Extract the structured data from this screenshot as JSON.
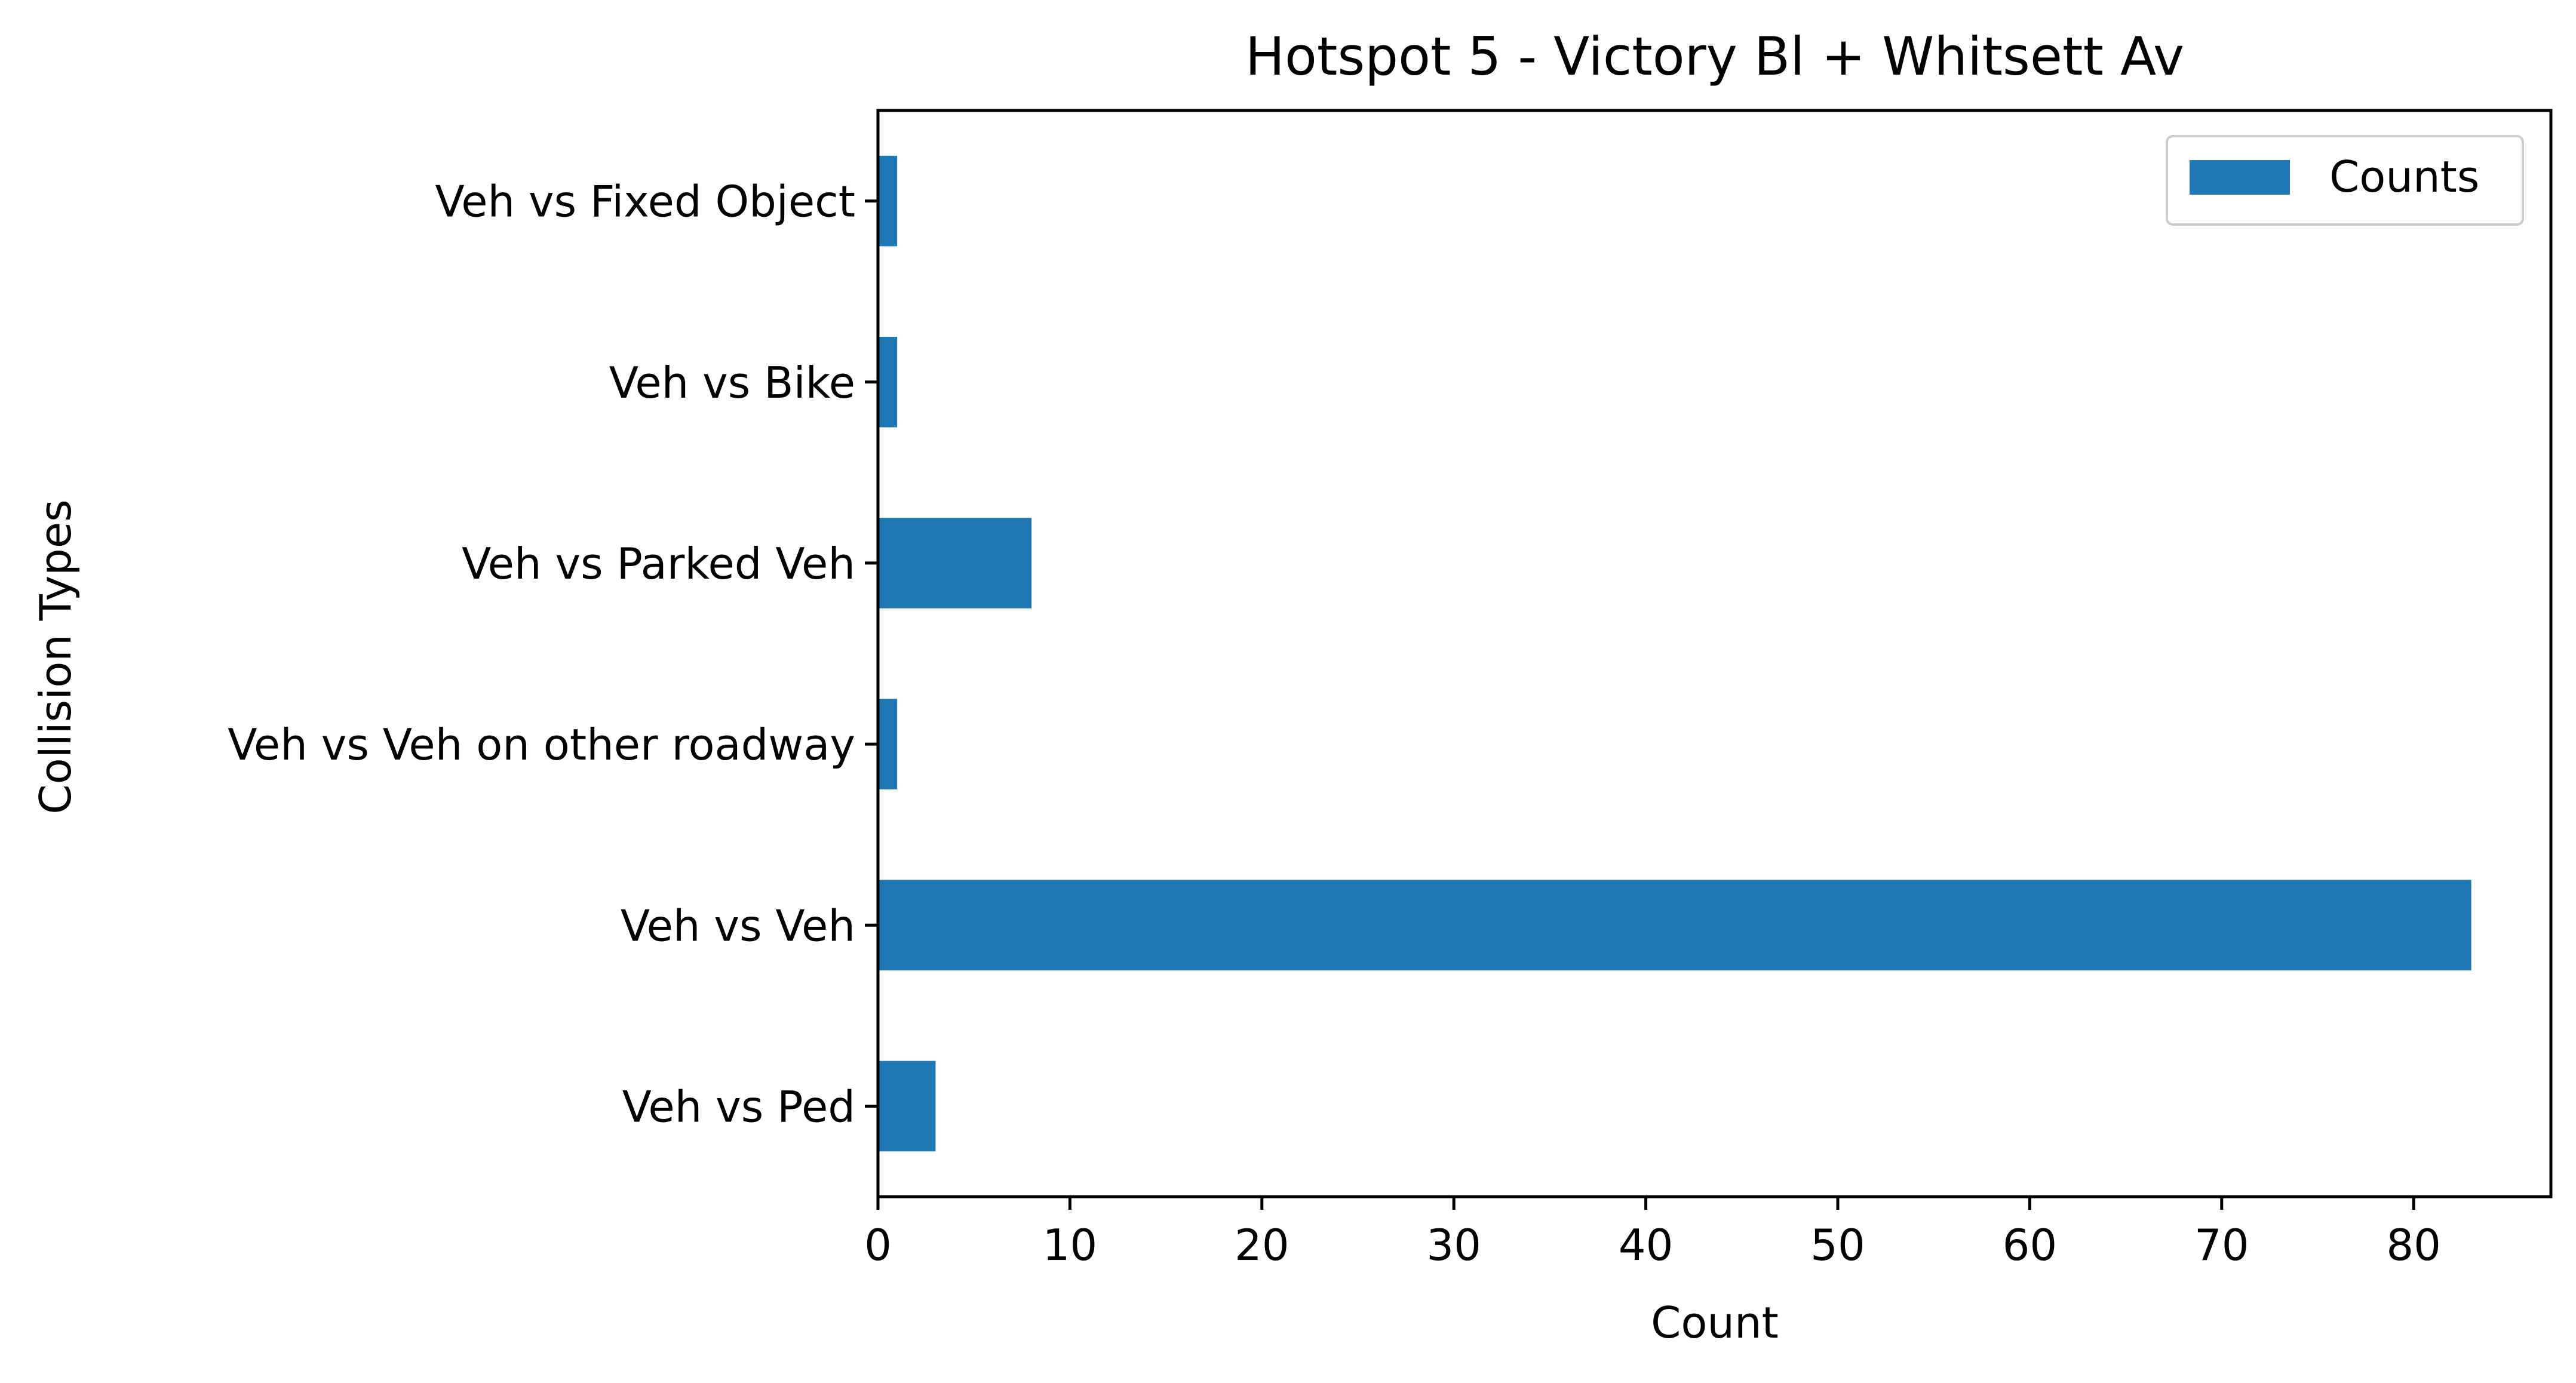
{
  "chart_data": {
    "type": "bar",
    "orientation": "horizontal",
    "title": "Hotspot 5 - Victory Bl + Whitsett Av",
    "xlabel": "Count",
    "ylabel": "Collision Types",
    "categories": [
      "Veh vs Fixed Object",
      "Veh vs Bike",
      "Veh vs Parked Veh",
      "Veh vs Veh on other roadway",
      "Veh vs Veh",
      "Veh vs Ped"
    ],
    "series": [
      {
        "name": "Counts",
        "values": [
          1,
          1,
          8,
          1,
          83,
          3
        ],
        "color": "#1f77b4"
      }
    ],
    "xlim": [
      0,
      87.15
    ],
    "xticks": [
      0,
      10,
      20,
      30,
      40,
      50,
      60,
      70,
      80
    ],
    "grid": false,
    "legend": "top-right"
  }
}
